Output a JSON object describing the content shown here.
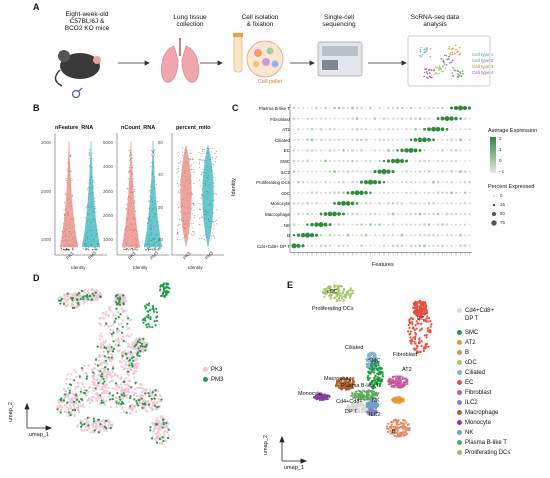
{
  "panels": {
    "a": "A",
    "b": "B",
    "c": "C",
    "d": "D",
    "e": "E"
  },
  "workflow": {
    "mice": "Eight-week-old\nC57BL/6J &\nBCO2 KO mice",
    "lung": "Lung tissue\ncollection",
    "isolation": "Cell isolation\n& fixation",
    "pellet": "Cell pellet",
    "sequencing": "Single-cell\nsequencing",
    "analysis": "ScRNA-seq data\nanalysis",
    "cell_types": [
      "Cell type 1",
      "Cell type 2",
      "Cell type 3",
      "Cell type 4"
    ]
  },
  "violin": {
    "titles": [
      "nFeature_RNA",
      "nCount_RNA",
      "percent_mito"
    ],
    "xlabel": "Identity",
    "groups": [
      "PK3",
      "PM3"
    ],
    "yticks": [
      [
        "1000",
        "2000",
        "3000"
      ],
      [
        "1000",
        "2000",
        "3000",
        "4000",
        "5000"
      ],
      [
        "20",
        "30",
        "40",
        "50"
      ]
    ],
    "colors": {
      "PK3": "#e8746b",
      "PM3": "#1aa9b0"
    }
  },
  "dotplot": {
    "ylabel": "Identity",
    "xlabel": "Features",
    "rows": [
      "Plasma B-like T",
      "Fibroblast",
      "AT2",
      "Ciliated",
      "EC",
      "SMC",
      "ILC2",
      "Proliferating DCs",
      "cDC",
      "Monocyte",
      "Macrophage",
      "NK",
      "B",
      "Cd4+Cd8+ DP T"
    ],
    "legend_title_expr": "Average Expression",
    "expr_ticks": [
      "2",
      "1",
      "0",
      "−1"
    ],
    "legend_title_pct": "Percent Expressed",
    "pct_ticks": [
      "0",
      "25",
      "50",
      "75"
    ],
    "color_high": "#2e8b3e",
    "color_low": "#e6e6e6"
  },
  "umap_d": {
    "xlabel": "umap_1",
    "ylabel": "umap_2",
    "legend": [
      {
        "label": "PK3",
        "color": "#f3c6d6"
      },
      {
        "label": "PM3",
        "color": "#1f9e4a"
      }
    ]
  },
  "umap_e": {
    "xlabel": "umap_1",
    "ylabel": "umap_2",
    "cluster_labels": [
      "cDC",
      "Proliferating DCs",
      "EC",
      "Ciliated",
      "Fibroblast",
      "SMC",
      "AT2",
      "Plasma B-like T",
      "Macrophage",
      "Monocyte",
      "Cd4+Cd8+",
      "DP T",
      "NK",
      "ILC2",
      "B"
    ],
    "legend": [
      {
        "label": "Cd4+Cd8+",
        "color": "#d9d9d9"
      },
      {
        "label": "DP T",
        "color": ""
      },
      {
        "label": "SMC",
        "color": "#1e9b3f"
      },
      {
        "label": "AT2",
        "color": "#e39a3b"
      },
      {
        "label": "B",
        "color": "#e38a6a"
      },
      {
        "label": "cDC",
        "color": "#a8c76a"
      },
      {
        "label": "Ciliated",
        "color": "#7fb3d5"
      },
      {
        "label": "EC",
        "color": "#e84c3d"
      },
      {
        "label": "Fibroblast",
        "color": "#c7569a"
      },
      {
        "label": "ILC2",
        "color": "#8a7fc6"
      },
      {
        "label": "Macrophage",
        "color": "#b0602f"
      },
      {
        "label": "Monocyte",
        "color": "#8a3fa0"
      },
      {
        "label": "NK",
        "color": "#6fa0c8"
      },
      {
        "label": "Plasma B-like T",
        "color": "#5fa85a"
      },
      {
        "label": "Proliferating DCs",
        "color": "#a0c060"
      }
    ]
  }
}
